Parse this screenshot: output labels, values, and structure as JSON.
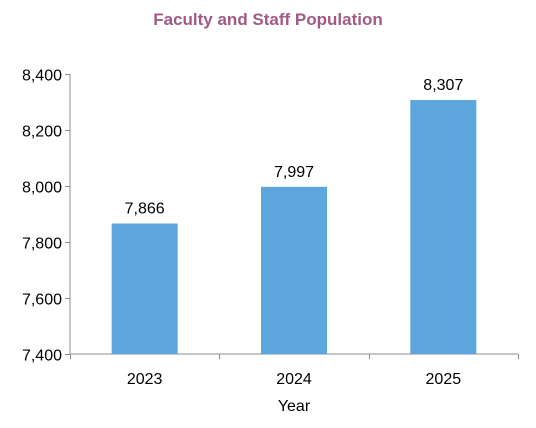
{
  "chart_data": {
    "type": "bar",
    "title": "Faculty and Staff Population",
    "xlabel": "Year",
    "ylabel": "",
    "categories": [
      "2023",
      "2024",
      "2025"
    ],
    "values": [
      7866,
      7997,
      8307
    ],
    "value_labels": [
      "7,866",
      "7,997",
      "8,307"
    ],
    "ylim": [
      7400,
      8400
    ],
    "yticks": [
      7400,
      7600,
      7800,
      8000,
      8200,
      8400
    ],
    "ytick_labels": [
      "7,400",
      "7,600",
      "7,800",
      "8,000",
      "8,200",
      "8,400"
    ],
    "grid": false,
    "legend": "none"
  },
  "colors": {
    "title": "#A05A86",
    "bar": "#5DA5DD",
    "axis": "#8C8C8C",
    "text": "#000000"
  }
}
